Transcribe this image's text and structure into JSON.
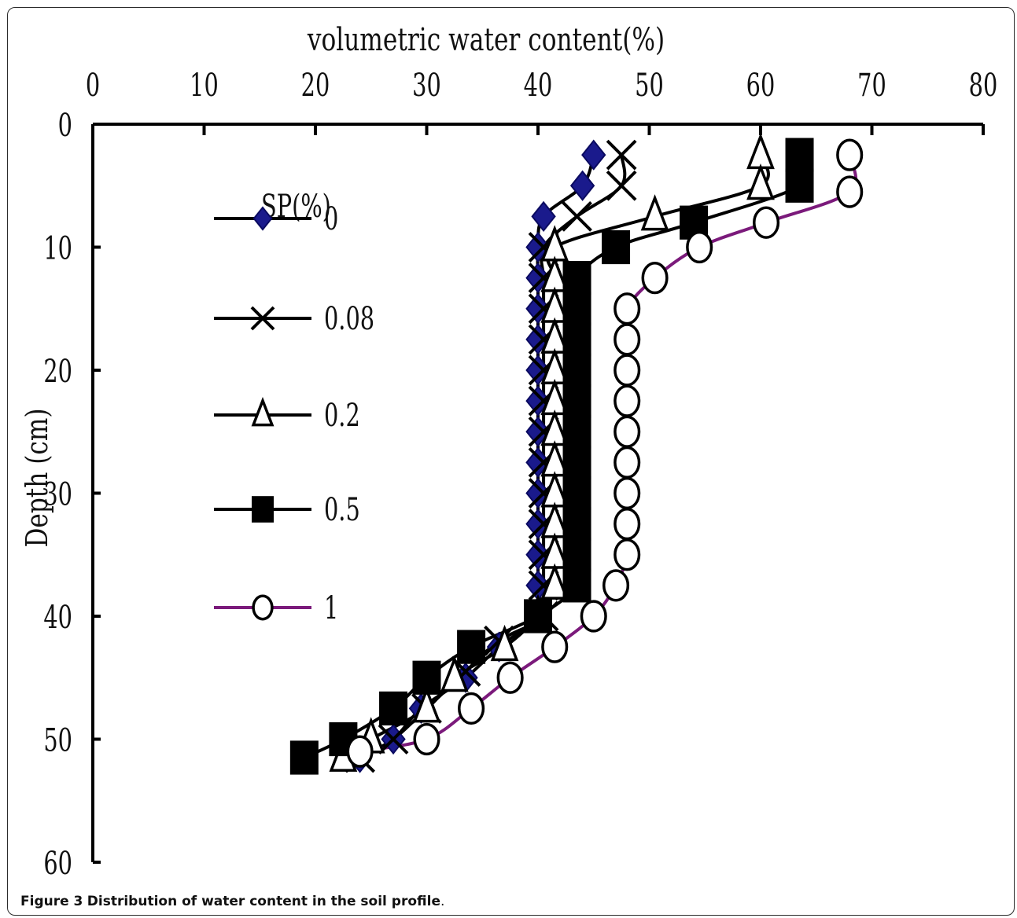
{
  "caption": {
    "label": "Figure 3",
    "text": "Distribution of water content in the soil profile",
    "end": "."
  },
  "chart_data": {
    "type": "line",
    "title": "",
    "xlabel": "volumetric water content(%)",
    "ylabel": "Depth (cm)",
    "xlim": [
      0,
      80
    ],
    "ylim": [
      0,
      60
    ],
    "x_axis_position": "top",
    "y_inverted": true,
    "xticks": [
      "0",
      "10",
      "20",
      "30",
      "40",
      "50",
      "60",
      "70",
      "80"
    ],
    "yticks": [
      "0",
      "10",
      "20",
      "30",
      "40",
      "50",
      "60"
    ],
    "grid": false,
    "legend_title": "SP(%)",
    "legend_position": "left-inside",
    "series": [
      {
        "name": "0",
        "marker": "diamond",
        "color": "#1a1a8c",
        "line_color": "#000000",
        "points": [
          [
            45,
            2.5
          ],
          [
            44,
            5
          ],
          [
            40.5,
            7.5
          ],
          [
            40,
            10
          ],
          [
            40,
            12.5
          ],
          [
            40,
            15
          ],
          [
            40,
            17.5
          ],
          [
            40,
            20
          ],
          [
            40,
            22.5
          ],
          [
            40,
            25
          ],
          [
            40,
            27.5
          ],
          [
            40,
            30
          ],
          [
            40,
            32.5
          ],
          [
            40,
            35
          ],
          [
            40,
            37.5
          ],
          [
            40,
            40
          ],
          [
            36.5,
            42.5
          ],
          [
            33.5,
            45
          ],
          [
            29.5,
            47.5
          ],
          [
            27,
            50
          ],
          [
            24,
            51.5
          ]
        ]
      },
      {
        "name": "0.08",
        "marker": "x",
        "color": "#000000",
        "line_color": "#000000",
        "points": [
          [
            47.5,
            2.5
          ],
          [
            47.5,
            5
          ],
          [
            43.5,
            7.5
          ],
          [
            40.5,
            10
          ],
          [
            40.5,
            12.5
          ],
          [
            40.5,
            15
          ],
          [
            40.5,
            17.5
          ],
          [
            40.5,
            20
          ],
          [
            40.5,
            22.5
          ],
          [
            40.5,
            25
          ],
          [
            40.5,
            27.5
          ],
          [
            40.5,
            30
          ],
          [
            40.5,
            32.5
          ],
          [
            40.5,
            35
          ],
          [
            40.5,
            37.5
          ],
          [
            40.5,
            40
          ],
          [
            36.5,
            42
          ],
          [
            33.5,
            44.5
          ],
          [
            30,
            47.5
          ],
          [
            27,
            50
          ],
          [
            24,
            51.5
          ]
        ]
      },
      {
        "name": "0.2",
        "marker": "triangle",
        "color": "#000000",
        "line_color": "#000000",
        "points": [
          [
            60,
            2.5
          ],
          [
            60,
            5
          ],
          [
            50.5,
            7.5
          ],
          [
            41.5,
            10
          ],
          [
            41.5,
            12.5
          ],
          [
            41.5,
            15
          ],
          [
            41.5,
            17.5
          ],
          [
            41.5,
            20
          ],
          [
            41.5,
            22.5
          ],
          [
            41.5,
            25
          ],
          [
            41.5,
            27.5
          ],
          [
            41.5,
            30
          ],
          [
            41.5,
            32.5
          ],
          [
            41.5,
            35
          ],
          [
            41.5,
            37.5
          ],
          [
            40,
            40
          ],
          [
            37,
            42.5
          ],
          [
            32.5,
            45
          ],
          [
            30,
            47.5
          ],
          [
            25,
            50
          ],
          [
            22.5,
            51.5
          ]
        ]
      },
      {
        "name": "0.5",
        "marker": "square",
        "color": "#000000",
        "line_color": "#000000",
        "points": [
          [
            63.5,
            2.5
          ],
          [
            63.5,
            5
          ],
          [
            54,
            8
          ],
          [
            47,
            10
          ],
          [
            43.5,
            12.5
          ],
          [
            43.5,
            15
          ],
          [
            43.5,
            17.5
          ],
          [
            43.5,
            20
          ],
          [
            43.5,
            22.5
          ],
          [
            43.5,
            25
          ],
          [
            43.5,
            27.5
          ],
          [
            43.5,
            30
          ],
          [
            43.5,
            32.5
          ],
          [
            43.5,
            35
          ],
          [
            43.5,
            37.5
          ],
          [
            40,
            40
          ],
          [
            34,
            42.5
          ],
          [
            30,
            45
          ],
          [
            27,
            47.5
          ],
          [
            22.5,
            50
          ],
          [
            19,
            51.5
          ]
        ]
      },
      {
        "name": "1",
        "marker": "circle",
        "color": "#000000",
        "line_color": "#7b1a7b",
        "points": [
          [
            68,
            2.5
          ],
          [
            68,
            5.5
          ],
          [
            60.5,
            8
          ],
          [
            54.5,
            10
          ],
          [
            50.5,
            12.5
          ],
          [
            48,
            15
          ],
          [
            48,
            17.5
          ],
          [
            48,
            20
          ],
          [
            48,
            22.5
          ],
          [
            48,
            25
          ],
          [
            48,
            27.5
          ],
          [
            48,
            30
          ],
          [
            48,
            32.5
          ],
          [
            48,
            35
          ],
          [
            47,
            37.5
          ],
          [
            45,
            40
          ],
          [
            41.5,
            42.5
          ],
          [
            37.5,
            45
          ],
          [
            34,
            47.5
          ],
          [
            30,
            50
          ],
          [
            24,
            51
          ]
        ]
      }
    ]
  }
}
